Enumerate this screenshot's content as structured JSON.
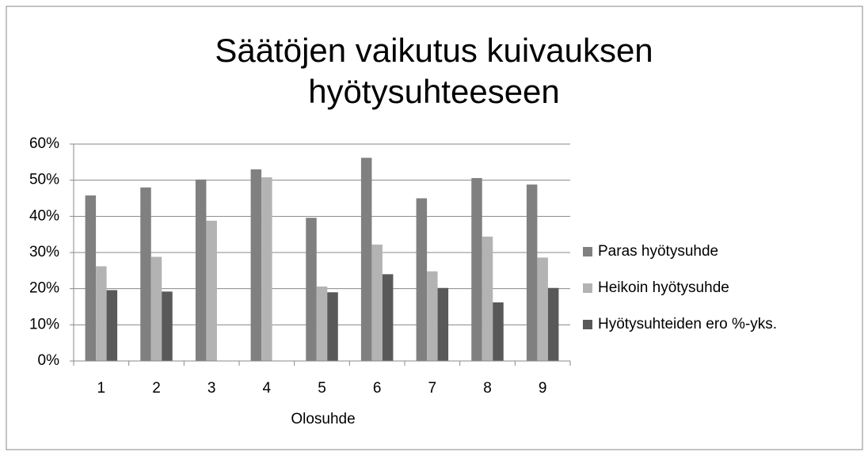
{
  "chart_data": {
    "type": "bar",
    "title": "Säätöjen vaikutus kuivauksen hyötysuhteeseen",
    "x_label": "Olosuhde",
    "categories": [
      "1",
      "2",
      "3",
      "4",
      "5",
      "6",
      "7",
      "8",
      "9"
    ],
    "series": [
      {
        "name": "Paras hyötysuhde",
        "color": "#808080",
        "values": [
          45.8,
          48,
          50.2,
          53,
          39.6,
          56.2,
          45,
          50.6,
          48.8
        ]
      },
      {
        "name": "Heikoin hyötysuhde",
        "color": "#b3b3b3",
        "values": [
          26.2,
          28.8,
          38.8,
          50.8,
          20.6,
          32.2,
          24.8,
          34.4,
          28.6
        ]
      },
      {
        "name": "Hyötysuhteiden ero %-yks.",
        "color": "#595959",
        "values": [
          19.6,
          19.2,
          null,
          null,
          19,
          24,
          20.2,
          16.2,
          20.2
        ]
      }
    ],
    "ylim": [
      0,
      60
    ],
    "yticks": [
      {
        "value": 0,
        "label": "0%"
      },
      {
        "value": 10,
        "label": "10%"
      },
      {
        "value": 20,
        "label": "20%"
      },
      {
        "value": 30,
        "label": "30%"
      },
      {
        "value": 40,
        "label": "40%"
      },
      {
        "value": 50,
        "label": "50%"
      },
      {
        "value": 60,
        "label": "60%"
      }
    ],
    "grid": true,
    "legend": "right"
  }
}
